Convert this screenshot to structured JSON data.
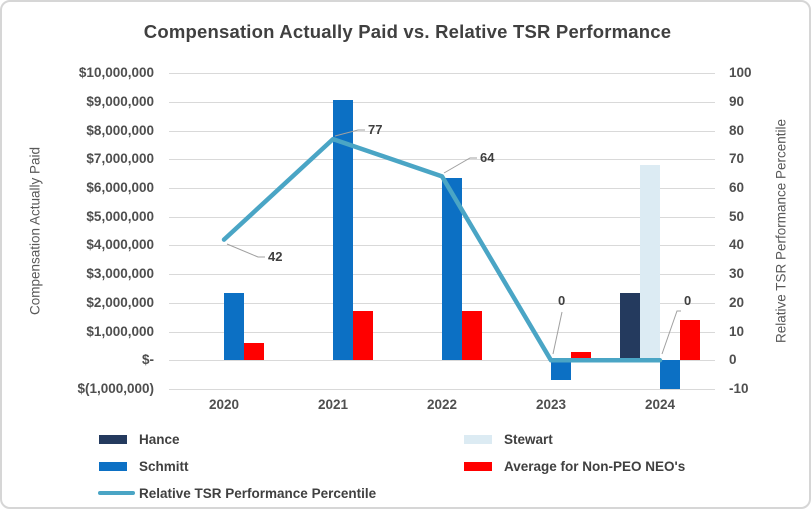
{
  "title": "Compensation Actually Paid vs. Relative TSR Performance",
  "left_axis": {
    "title": "Compensation Actually Paid",
    "ticks": [
      "$10,000,000",
      "$9,000,000",
      "$8,000,000",
      "$7,000,000",
      "$6,000,000",
      "$5,000,000",
      "$4,000,000",
      "$3,000,000",
      "$2,000,000",
      "$1,000,000",
      "$-",
      "$(1,000,000)"
    ]
  },
  "right_axis": {
    "title": "Relative TSR Performance Percentile",
    "ticks": [
      "100",
      "90",
      "80",
      "70",
      "60",
      "50",
      "40",
      "30",
      "20",
      "10",
      "0",
      "-10"
    ]
  },
  "chart_data": {
    "type": "bar",
    "subtype": "clustered bar with line on secondary axis",
    "title": "Compensation Actually Paid vs. Relative TSR Performance",
    "categories": [
      "2020",
      "2021",
      "2022",
      "2023",
      "2024"
    ],
    "series": [
      {
        "name": "Hance",
        "type": "bar",
        "axis": "left",
        "color": "#243A5E",
        "values": [
          null,
          null,
          null,
          null,
          2350000
        ]
      },
      {
        "name": "Stewart",
        "type": "bar",
        "axis": "left",
        "color": "#DCEBF3",
        "values": [
          null,
          null,
          null,
          null,
          6800000
        ]
      },
      {
        "name": "Schmitt",
        "type": "bar",
        "axis": "left",
        "color": "#0C70C4",
        "values": [
          2350000,
          9050000,
          6350000,
          -700000,
          -1000000
        ]
      },
      {
        "name": "Average for Non-PEO NEO's",
        "type": "bar",
        "axis": "left",
        "color": "#FF0000",
        "values": [
          600000,
          1700000,
          1700000,
          300000,
          1400000
        ]
      },
      {
        "name": "Relative TSR Performance Percentile",
        "type": "line",
        "axis": "right",
        "color": "#4AA5C5",
        "values": [
          42,
          77,
          64,
          0,
          0
        ],
        "data_labels": [
          "42",
          "77",
          "64",
          "0",
          "0"
        ]
      }
    ],
    "xlabel": "",
    "ylabel_left": "Compensation Actually Paid",
    "ylabel_right": "Relative TSR Performance Percentile",
    "ylim_left": [
      -1000000,
      10000000
    ],
    "ylim_right": [
      -10,
      100
    ],
    "grid": true,
    "legend_position": "bottom"
  },
  "colors": {
    "gridline": "#D9D9D9",
    "title_text": "#404040",
    "tick_text": "#4F4F4F",
    "axis_title_text": "#595959",
    "leader_line": "#A0A0A0"
  }
}
